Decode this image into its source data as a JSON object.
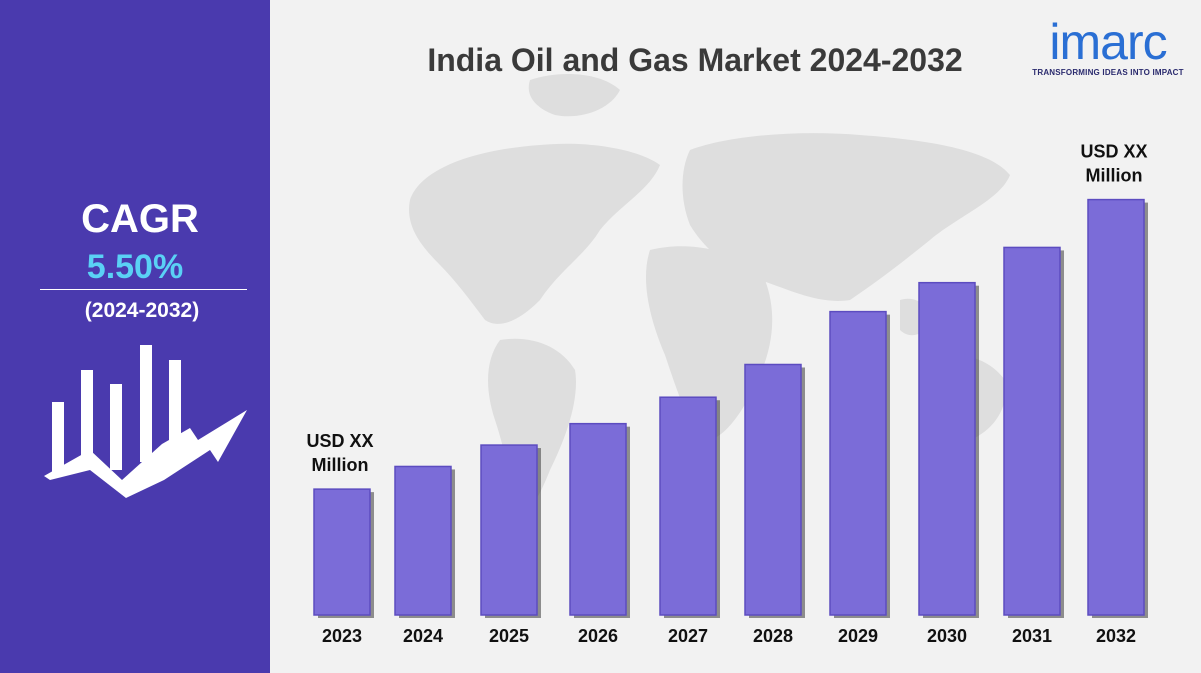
{
  "title": "India Oil and Gas Market 2024-2032",
  "cagr": {
    "label": "CAGR",
    "value": "5.50%",
    "period": "(2024-2032)"
  },
  "logo": {
    "name": "imarc",
    "tagline": "TRANSFORMING IDEAS INTO IMPACT"
  },
  "icons": {
    "growth": "bar-chart-growth-arrow-icon",
    "map": "world-map-background"
  },
  "colors": {
    "panel": "#4a3aae",
    "bar": "#7b6cd8",
    "bar_edge": "#5c4cc0",
    "cagr_value": "#5ad1f5",
    "logo": "#2a6fd4"
  },
  "chart_data": {
    "type": "bar",
    "title": "India Oil and Gas Market 2024-2032",
    "categories": [
      "2023",
      "2024",
      "2025",
      "2026",
      "2027",
      "2028",
      "2029",
      "2030",
      "2031",
      "2032"
    ],
    "values": [
      100,
      118,
      135,
      152,
      173,
      199,
      241,
      264,
      292,
      330
    ],
    "annotations": [
      {
        "category": "2023",
        "text": "USD XX Million"
      },
      {
        "category": "2032",
        "text": "USD XX Million"
      }
    ],
    "ylim": [
      0,
      340
    ],
    "grid": false,
    "legend": "none"
  }
}
